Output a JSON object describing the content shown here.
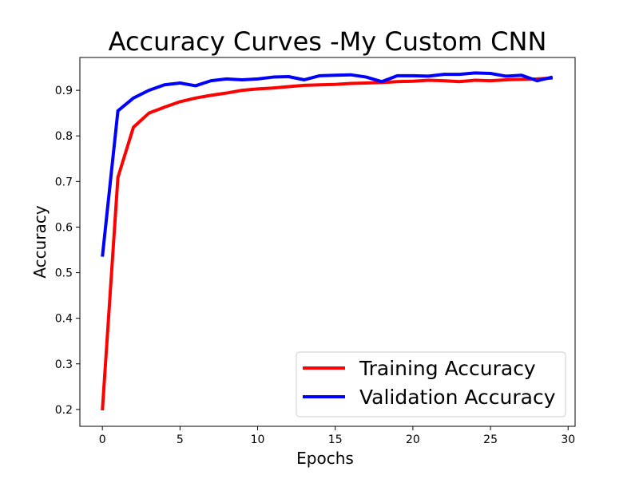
{
  "chart_data": {
    "type": "line",
    "title": "Accuracy Curves -My Custom CNN",
    "xlabel": "Epochs",
    "ylabel": "Accuracy",
    "xlim": [
      -1.45,
      30.45
    ],
    "ylim": [
      0.163,
      0.972
    ],
    "xticks": [
      0,
      5,
      10,
      15,
      20,
      25,
      30
    ],
    "yticks": [
      0.2,
      0.3,
      0.4,
      0.5,
      0.6,
      0.7,
      0.8,
      0.9
    ],
    "grid": false,
    "legend_position": "bottom-right",
    "x": [
      0,
      1,
      2,
      3,
      4,
      5,
      6,
      7,
      8,
      9,
      10,
      11,
      12,
      13,
      14,
      15,
      16,
      17,
      18,
      19,
      20,
      21,
      22,
      23,
      24,
      25,
      26,
      27,
      28,
      29
    ],
    "series": [
      {
        "name": "Training Accuracy",
        "color": "#ff0000",
        "values": [
          0.198,
          0.709,
          0.819,
          0.85,
          0.863,
          0.875,
          0.883,
          0.889,
          0.894,
          0.9,
          0.903,
          0.905,
          0.908,
          0.911,
          0.912,
          0.913,
          0.915,
          0.916,
          0.917,
          0.919,
          0.92,
          0.922,
          0.921,
          0.919,
          0.922,
          0.921,
          0.923,
          0.924,
          0.925,
          0.927
        ]
      },
      {
        "name": "Validation Accuracy",
        "color": "#0000ff",
        "values": [
          0.535,
          0.855,
          0.883,
          0.9,
          0.912,
          0.916,
          0.91,
          0.921,
          0.925,
          0.923,
          0.925,
          0.929,
          0.93,
          0.923,
          0.932,
          0.933,
          0.934,
          0.929,
          0.919,
          0.932,
          0.932,
          0.931,
          0.935,
          0.935,
          0.938,
          0.937,
          0.931,
          0.933,
          0.921,
          0.929
        ]
      }
    ]
  }
}
